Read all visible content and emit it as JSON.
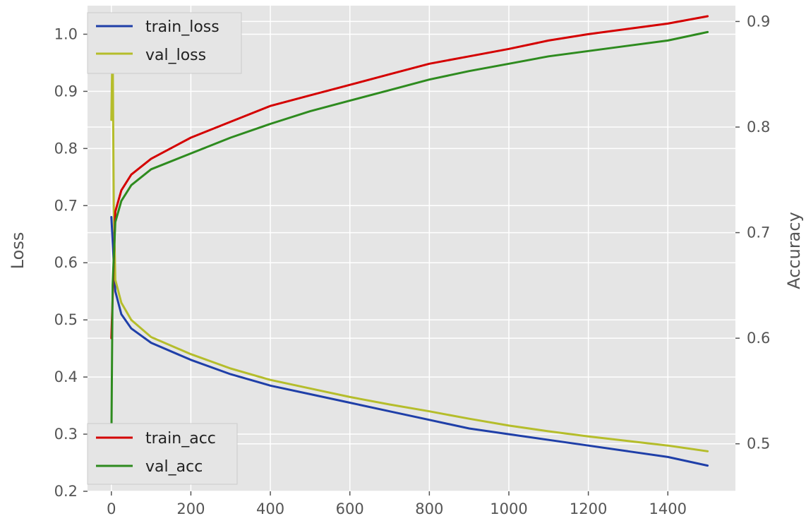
{
  "chart_data": {
    "type": "line",
    "title": "",
    "xlabel": "",
    "ylabel_left": "Loss",
    "ylabel_right": "Accuracy",
    "xlim": [
      -60,
      1570
    ],
    "ylim_left": [
      0.2,
      1.05
    ],
    "ylim_right": [
      0.455,
      0.915
    ],
    "grid": true,
    "x_ticks": [
      0,
      200,
      400,
      600,
      800,
      1000,
      1200,
      1400
    ],
    "y_ticks_left": [
      0.2,
      0.3,
      0.4,
      0.5,
      0.6,
      0.7,
      0.8,
      0.9,
      1.0
    ],
    "y_ticks_right": [
      0.5,
      0.6,
      0.7,
      0.8,
      0.9
    ],
    "legends": [
      {
        "placement": "upper-left",
        "entries": [
          "train_loss",
          "val_loss"
        ]
      },
      {
        "placement": "lower-left",
        "entries": [
          "train_acc",
          "val_acc"
        ]
      }
    ],
    "series": [
      {
        "name": "train_loss",
        "axis": "left",
        "color": "#1f3fa8",
        "x": [
          0,
          10,
          25,
          50,
          100,
          200,
          300,
          400,
          500,
          600,
          700,
          800,
          900,
          1000,
          1100,
          1200,
          1300,
          1400,
          1500
        ],
        "y": [
          0.68,
          0.55,
          0.51,
          0.485,
          0.46,
          0.43,
          0.405,
          0.385,
          0.37,
          0.355,
          0.34,
          0.325,
          0.31,
          0.3,
          0.29,
          0.28,
          0.27,
          0.26,
          0.245
        ]
      },
      {
        "name": "val_loss",
        "axis": "left",
        "color": "#b5bd2b",
        "x": [
          0,
          3,
          6,
          10,
          25,
          50,
          100,
          200,
          300,
          400,
          500,
          600,
          700,
          800,
          900,
          1000,
          1100,
          1200,
          1300,
          1400,
          1500
        ],
        "y": [
          0.85,
          1.0,
          0.7,
          0.57,
          0.53,
          0.5,
          0.47,
          0.44,
          0.415,
          0.395,
          0.38,
          0.365,
          0.352,
          0.34,
          0.327,
          0.315,
          0.305,
          0.296,
          0.288,
          0.28,
          0.27
        ]
      },
      {
        "name": "train_acc",
        "axis": "right",
        "color": "#d40000",
        "x": [
          0,
          10,
          25,
          50,
          100,
          200,
          300,
          400,
          500,
          600,
          700,
          800,
          900,
          1000,
          1100,
          1200,
          1300,
          1400,
          1500
        ],
        "y": [
          0.6,
          0.72,
          0.74,
          0.755,
          0.77,
          0.79,
          0.805,
          0.82,
          0.83,
          0.84,
          0.85,
          0.86,
          0.867,
          0.874,
          0.882,
          0.888,
          0.893,
          0.898,
          0.905
        ]
      },
      {
        "name": "val_acc",
        "axis": "right",
        "color": "#2e8b1f",
        "x": [
          0,
          3,
          10,
          25,
          50,
          100,
          200,
          300,
          400,
          500,
          600,
          700,
          800,
          900,
          1000,
          1100,
          1200,
          1300,
          1400,
          1500
        ],
        "y": [
          0.5,
          0.65,
          0.71,
          0.73,
          0.745,
          0.76,
          0.775,
          0.79,
          0.803,
          0.815,
          0.825,
          0.835,
          0.845,
          0.853,
          0.86,
          0.867,
          0.872,
          0.877,
          0.882,
          0.89
        ]
      }
    ]
  }
}
